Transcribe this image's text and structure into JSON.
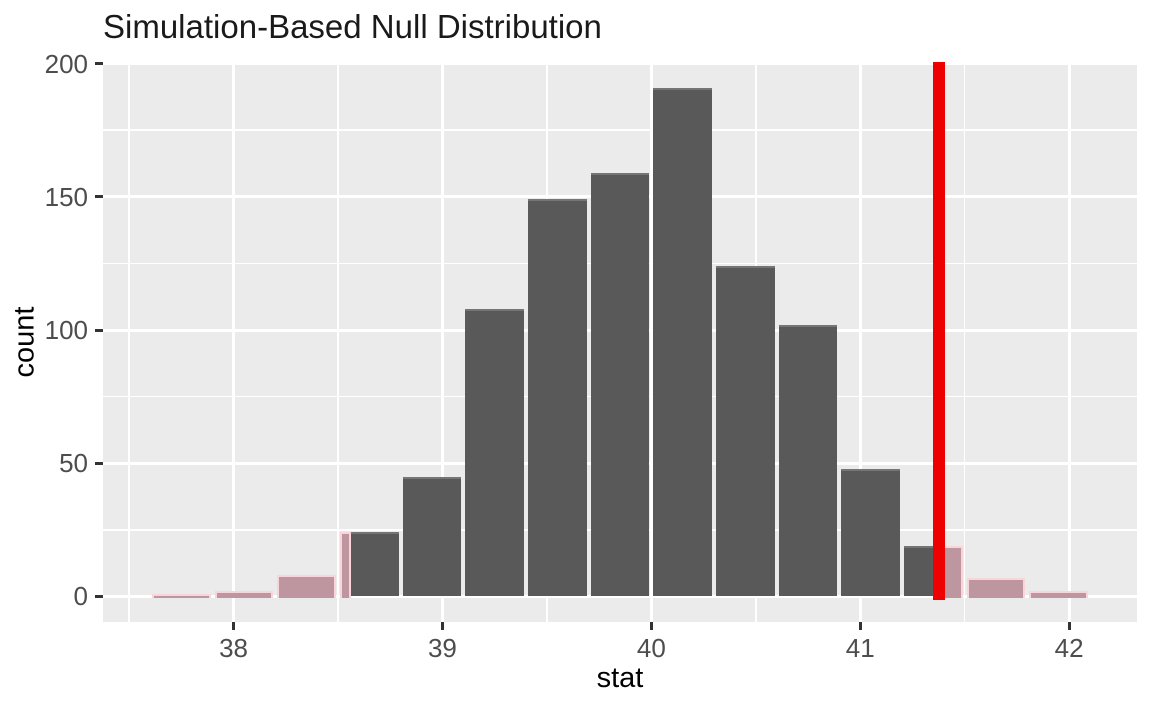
{
  "title": "Simulation-Based Null Distribution",
  "x_axis": {
    "label": "stat",
    "ticks": [
      38,
      39,
      40,
      41,
      42
    ]
  },
  "y_axis": {
    "label": "count",
    "ticks": [
      0,
      50,
      100,
      150,
      200
    ]
  },
  "chart_data": {
    "type": "bar",
    "subtype": "histogram",
    "title": "Simulation-Based Null Distribution",
    "xlabel": "stat",
    "ylabel": "count",
    "x_range": [
      37.375,
      42.325
    ],
    "y_range": [
      -9.6,
      200.6
    ],
    "bin_width": 0.3,
    "bins": [
      {
        "x0": 37.6,
        "x1": 37.9,
        "count": 1
      },
      {
        "x0": 37.9,
        "x1": 38.2,
        "count": 2
      },
      {
        "x0": 38.2,
        "x1": 38.5,
        "count": 8
      },
      {
        "x0": 38.5,
        "x1": 38.8,
        "count": 24
      },
      {
        "x0": 38.8,
        "x1": 39.1,
        "count": 45
      },
      {
        "x0": 39.1,
        "x1": 39.4,
        "count": 108
      },
      {
        "x0": 39.4,
        "x1": 39.7,
        "count": 149
      },
      {
        "x0": 39.7,
        "x1": 40.0,
        "count": 159
      },
      {
        "x0": 40.0,
        "x1": 40.3,
        "count": 191
      },
      {
        "x0": 40.3,
        "x1": 40.6,
        "count": 124
      },
      {
        "x0": 40.6,
        "x1": 40.9,
        "count": 102
      },
      {
        "x0": 40.9,
        "x1": 41.2,
        "count": 48
      },
      {
        "x0": 41.2,
        "x1": 41.5,
        "count": 19
      },
      {
        "x0": 41.5,
        "x1": 41.8,
        "count": 7
      },
      {
        "x0": 41.8,
        "x1": 42.1,
        "count": 2
      }
    ],
    "observed_stat_line": 41.375,
    "shade_two_sided": {
      "left_of": 38.56,
      "right_of": 41.375
    },
    "grid": {
      "major_x": [
        38,
        39,
        40,
        41,
        42
      ],
      "minor_x": [
        37.5,
        38.5,
        39.5,
        40.5,
        41.5
      ],
      "major_y": [
        0,
        50,
        100,
        150,
        200
      ],
      "minor_y": [
        25,
        75,
        125,
        175
      ]
    },
    "legend": "none",
    "colors": {
      "bar_fill": "#595959",
      "shaded_bar_fill": "#BE96A0",
      "shaded_bar_border": "#F9D4DB",
      "observed_line": "#EE0000",
      "panel_background": "#EBEBEB",
      "gridline": "#FFFFFF",
      "tick_text": "#4D4D4D",
      "tick_mark": "#333333",
      "title_text": "#1A1A1A"
    }
  }
}
